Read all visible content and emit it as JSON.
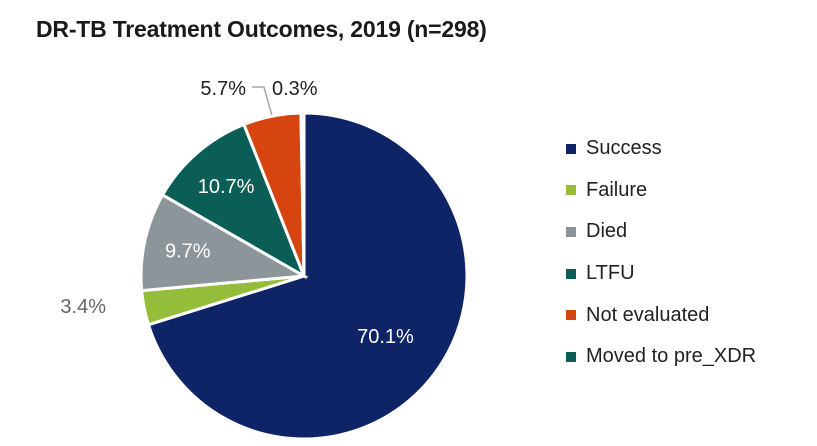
{
  "chart_data": {
    "type": "pie",
    "title": "DR-TB Treatment Outcomes, 2019 (n=298)",
    "slices": [
      {
        "label": "Success",
        "value": 70.1,
        "display": "70.1%",
        "color": "#0f2466",
        "label_color": "#ffffff",
        "label_placement": "inside"
      },
      {
        "label": "Failure",
        "value": 3.4,
        "display": "3.4%",
        "color": "#94bd3a",
        "label_color": "#666666",
        "label_placement": "outside"
      },
      {
        "label": "Died",
        "value": 9.7,
        "display": "9.7%",
        "color": "#8c969a",
        "label_color": "#ffffff",
        "label_placement": "inside"
      },
      {
        "label": "LTFU",
        "value": 10.7,
        "display": "10.7%",
        "color": "#0b5e56",
        "label_color": "#ffffff",
        "label_placement": "inside"
      },
      {
        "label": "Not evaluated",
        "value": 5.7,
        "display": "5.7%",
        "color": "#d64510",
        "label_color": "#222222",
        "label_placement": "outside"
      },
      {
        "label": "Moved to pre_XDR",
        "value": 0.3,
        "display": "0.3%",
        "color": "#0b5e56",
        "label_color": "#222222",
        "label_placement": "outside"
      }
    ],
    "start": "12 o'clock",
    "direction": "clockwise",
    "legend_position": "right"
  }
}
